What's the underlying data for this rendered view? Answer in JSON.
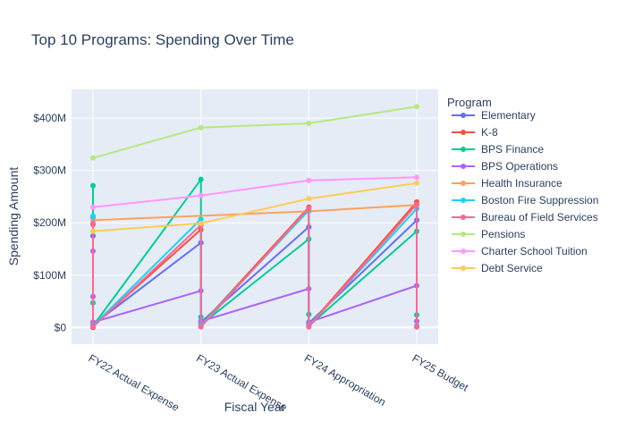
{
  "chart_data": {
    "type": "line",
    "title": "Top 10 Programs: Spending Over Time",
    "xlabel": "Fiscal Year",
    "ylabel": "Spending Amount",
    "legend_title": "Program",
    "legend_position": "right",
    "grid": true,
    "categories": [
      "FY22 Actual Expense",
      "FY23 Actual Expense",
      "FY24 Appropriation",
      "FY25 Budget"
    ],
    "ylim": [
      -32000000,
      455000000
    ],
    "y_ticks": [
      0,
      100000000,
      200000000,
      300000000,
      400000000
    ],
    "y_tick_labels": [
      "$0",
      "$100M",
      "$200M",
      "$300M",
      "$400M"
    ],
    "series": [
      {
        "name": "Elementary",
        "color": "#636efa",
        "points": [
          [
            0,
            0
          ],
          [
            0,
            175000000
          ],
          [
            0,
            210000000
          ],
          [
            0,
            5000000
          ],
          [
            1,
            162000000
          ],
          [
            1,
            10000000
          ],
          [
            2,
            192000000
          ],
          [
            2,
            8000000
          ],
          [
            3,
            205000000
          ],
          [
            3,
            2000000
          ]
        ]
      },
      {
        "name": "K-8",
        "color": "#ef553b",
        "points": [
          [
            0,
            0
          ],
          [
            0,
            197000000
          ],
          [
            0,
            3000000
          ],
          [
            1,
            187000000
          ],
          [
            1,
            5000000
          ],
          [
            2,
            230000000
          ],
          [
            2,
            3000000
          ],
          [
            3,
            240000000
          ],
          [
            3,
            1000000
          ]
        ]
      },
      {
        "name": "BPS Finance",
        "color": "#00cc96",
        "points": [
          [
            0,
            271000000
          ],
          [
            0,
            47000000
          ],
          [
            0,
            3000000
          ],
          [
            1,
            283000000
          ],
          [
            1,
            20000000
          ],
          [
            1,
            5000000
          ],
          [
            2,
            169000000
          ],
          [
            2,
            25000000
          ],
          [
            2,
            3000000
          ],
          [
            3,
            184000000
          ],
          [
            3,
            24000000
          ],
          [
            3,
            3000000
          ]
        ]
      },
      {
        "name": "BPS Operations",
        "color": "#ab63fa",
        "points": [
          [
            0,
            146000000
          ],
          [
            0,
            59000000
          ],
          [
            0,
            10000000
          ],
          [
            1,
            70000000
          ],
          [
            1,
            12000000
          ],
          [
            2,
            74000000
          ],
          [
            2,
            10000000
          ],
          [
            3,
            80000000
          ],
          [
            3,
            12000000
          ]
        ]
      },
      {
        "name": "Health Insurance",
        "color": "#ffa15a",
        "points": [
          [
            0,
            205000000
          ],
          [
            2,
            222000000
          ],
          [
            3,
            234000000
          ]
        ]
      },
      {
        "name": "Boston Fire Suppression",
        "color": "#19d3f3",
        "points": [
          [
            0,
            213000000
          ],
          [
            0,
            3000000
          ],
          [
            1,
            207000000
          ],
          [
            1,
            4000000
          ],
          [
            2,
            224000000
          ],
          [
            2,
            3000000
          ],
          [
            3,
            227000000
          ],
          [
            3,
            3000000
          ]
        ]
      },
      {
        "name": "Bureau of Field Services",
        "color": "#ff6692",
        "points": [
          [
            0,
            199000000
          ],
          [
            0,
            1000000
          ],
          [
            1,
            196000000
          ],
          [
            1,
            1000000
          ],
          [
            2,
            228000000
          ],
          [
            2,
            1000000
          ],
          [
            3,
            235000000
          ],
          [
            3,
            1000000
          ]
        ]
      },
      {
        "name": "Pensions",
        "color": "#b6e880",
        "points": [
          [
            0,
            324000000
          ],
          [
            1,
            382000000
          ],
          [
            2,
            390000000
          ],
          [
            3,
            422000000
          ]
        ]
      },
      {
        "name": "Charter School Tuition",
        "color": "#ff97ff",
        "points": [
          [
            0,
            230000000
          ],
          [
            1,
            252000000
          ],
          [
            2,
            281000000
          ],
          [
            3,
            287000000
          ]
        ]
      },
      {
        "name": "Debt Service",
        "color": "#fecb52",
        "points": [
          [
            0,
            184000000
          ],
          [
            1,
            199000000
          ],
          [
            2,
            246000000
          ],
          [
            3,
            276000000
          ]
        ]
      }
    ]
  }
}
